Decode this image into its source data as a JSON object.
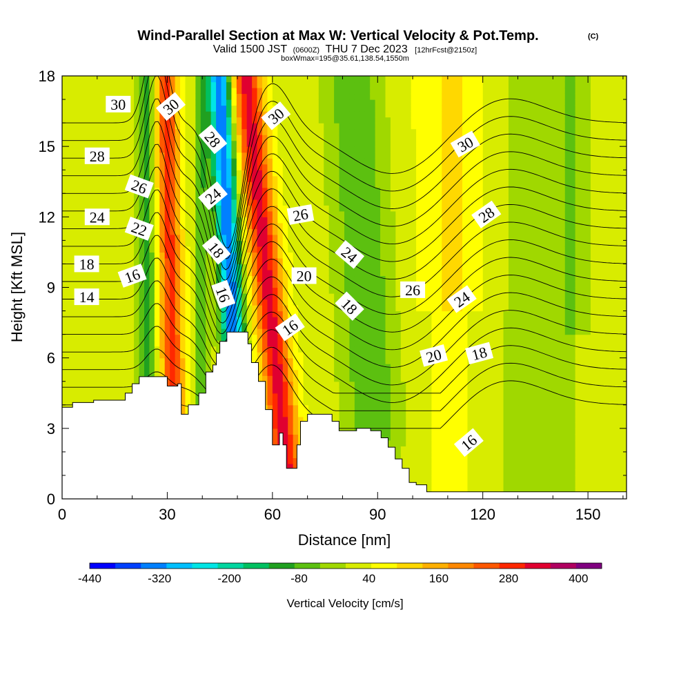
{
  "chart_data": {
    "type": "contour",
    "title": "Wind-Parallel Section at Max W: Vertical Velocity & Pot.Temp.",
    "title_mark": "(C)",
    "subtitle_parts": [
      "Valid 1500 JST",
      "(0600Z)",
      "THU 7 Dec 2023",
      "[12hrFcst@2150z]"
    ],
    "subtitle2": "boxWmax=195@35.61,138.54,1550m",
    "xlabel": "Distance [nm]",
    "ylabel": "Height [Kft MSL]",
    "xlim": [
      0,
      161
    ],
    "ylim": [
      0,
      18
    ],
    "xticks": [
      0,
      30,
      60,
      90,
      120,
      150
    ],
    "yticks": [
      0,
      3,
      6,
      9,
      12,
      15,
      18
    ],
    "colorbar": {
      "label": "Vertical Velocity [cm/s]",
      "tick_labels": [
        "-440",
        "-320",
        "-200",
        "-80",
        "40",
        "160",
        "280",
        "400"
      ],
      "tick_values": [
        -440,
        -320,
        -200,
        -80,
        40,
        160,
        280,
        400
      ],
      "range": [
        -440,
        440
      ],
      "colors": [
        "#0000ff",
        "#0040ff",
        "#0080ff",
        "#00bfff",
        "#00e5e5",
        "#00d6a0",
        "#00c060",
        "#20a020",
        "#5cc010",
        "#a0d800",
        "#d8ec00",
        "#ffff00",
        "#ffd800",
        "#ffb000",
        "#ff8800",
        "#ff5800",
        "#ff2800",
        "#e00030",
        "#b00060",
        "#800080"
      ]
    },
    "theta_contour_labels": [
      {
        "text": "30",
        "x": 16,
        "y": 16.8,
        "rot": 0
      },
      {
        "text": "30",
        "x": 31,
        "y": 16.7,
        "rot": -40
      },
      {
        "text": "28",
        "x": 43,
        "y": 15.3,
        "rot": 50
      },
      {
        "text": "30",
        "x": 61,
        "y": 16.3,
        "rot": -40
      },
      {
        "text": "30",
        "x": 115,
        "y": 15.1,
        "rot": -30
      },
      {
        "text": "28",
        "x": 10,
        "y": 14.6,
        "rot": 0
      },
      {
        "text": "26",
        "x": 22,
        "y": 13.3,
        "rot": 20
      },
      {
        "text": "24",
        "x": 43,
        "y": 12.9,
        "rot": -40
      },
      {
        "text": "26",
        "x": 68,
        "y": 12.1,
        "rot": -10
      },
      {
        "text": "28",
        "x": 121,
        "y": 12.1,
        "rot": -35
      },
      {
        "text": "24",
        "x": 10,
        "y": 12.0,
        "rot": 0
      },
      {
        "text": "22",
        "x": 22,
        "y": 11.5,
        "rot": 20
      },
      {
        "text": "18",
        "x": 44,
        "y": 10.6,
        "rot": 50
      },
      {
        "text": "24",
        "x": 82,
        "y": 10.4,
        "rot": 40
      },
      {
        "text": "18",
        "x": 7,
        "y": 10.0,
        "rot": 0
      },
      {
        "text": "16",
        "x": 20,
        "y": 9.5,
        "rot": -20
      },
      {
        "text": "20",
        "x": 69,
        "y": 9.5,
        "rot": 0
      },
      {
        "text": "26",
        "x": 100,
        "y": 8.9,
        "rot": 0
      },
      {
        "text": "24",
        "x": 114,
        "y": 8.5,
        "rot": -35
      },
      {
        "text": "14",
        "x": 7,
        "y": 8.6,
        "rot": 0
      },
      {
        "text": "16",
        "x": 46,
        "y": 8.7,
        "rot": 70
      },
      {
        "text": "18",
        "x": 82,
        "y": 8.2,
        "rot": 45
      },
      {
        "text": "16",
        "x": 65,
        "y": 7.3,
        "rot": -35
      },
      {
        "text": "20",
        "x": 106,
        "y": 6.1,
        "rot": -15
      },
      {
        "text": "18",
        "x": 119,
        "y": 6.2,
        "rot": -15
      },
      {
        "text": "16",
        "x": 116,
        "y": 2.4,
        "rot": -40
      }
    ],
    "terrain": [
      [
        0,
        3.9
      ],
      [
        3,
        4.1
      ],
      [
        9,
        4.2
      ],
      [
        16,
        4.2
      ],
      [
        18,
        4.5
      ],
      [
        20,
        4.9
      ],
      [
        22,
        5.2
      ],
      [
        28,
        5.2
      ],
      [
        30,
        4.8
      ],
      [
        33,
        4.9
      ],
      [
        34,
        3.6
      ],
      [
        36,
        4.0
      ],
      [
        39,
        4.5
      ],
      [
        41,
        5.4
      ],
      [
        43,
        5.7
      ],
      [
        44,
        6.2
      ],
      [
        45,
        6.7
      ],
      [
        47,
        7.1
      ],
      [
        51,
        7.1
      ],
      [
        53,
        6.6
      ],
      [
        54,
        5.8
      ],
      [
        56,
        5.0
      ],
      [
        58,
        3.8
      ],
      [
        60,
        2.3
      ],
      [
        62,
        2.8
      ],
      [
        63,
        2.3
      ],
      [
        64,
        1.3
      ],
      [
        67,
        2.3
      ],
      [
        68,
        3.3
      ],
      [
        70,
        3.6
      ],
      [
        74,
        3.6
      ],
      [
        77,
        3.3
      ],
      [
        79,
        2.9
      ],
      [
        84,
        3.0
      ],
      [
        88,
        2.9
      ],
      [
        91,
        2.6
      ],
      [
        93,
        2.2
      ],
      [
        95,
        1.7
      ],
      [
        97,
        1.3
      ],
      [
        99,
        0.7
      ],
      [
        101,
        0.6
      ],
      [
        104,
        0.3
      ],
      [
        161,
        0.3
      ]
    ]
  }
}
